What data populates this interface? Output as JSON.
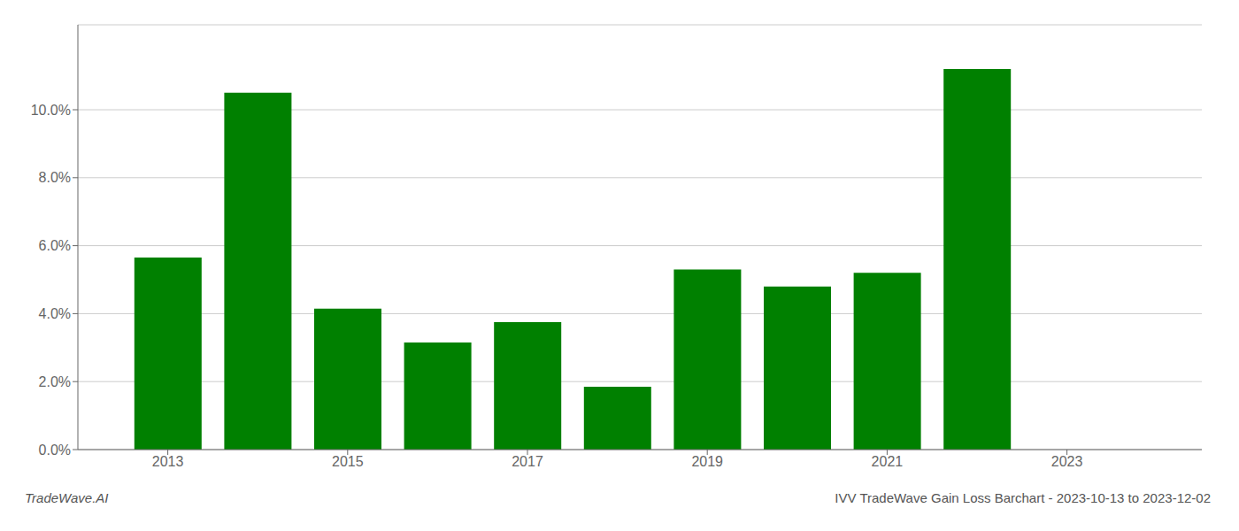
{
  "chart_data": {
    "type": "bar",
    "title": "IVV TradeWave Gain Loss Barchart - 2023-10-13 to 2023-12-02",
    "annotations": [
      "TradeWave.AI"
    ],
    "x": [
      2013,
      2014,
      2015,
      2016,
      2017,
      2018,
      2019,
      2020,
      2021,
      2022
    ],
    "values": [
      0.0565,
      0.105,
      0.0415,
      0.0315,
      0.0375,
      0.0185,
      0.053,
      0.048,
      0.052,
      0.112
    ],
    "color": "#008000",
    "xlim": [
      2012.0,
      2024.5
    ],
    "xticks": [
      2013,
      2015,
      2017,
      2019,
      2021,
      2023
    ],
    "ylim": [
      0,
      0.125
    ],
    "yticks": [
      {
        "value": 0.0,
        "label": "0.0%"
      },
      {
        "value": 0.02,
        "label": "2.0%"
      },
      {
        "value": 0.04,
        "label": "4.0%"
      },
      {
        "value": 0.06,
        "label": "6.0%"
      },
      {
        "value": 0.08,
        "label": "8.0%"
      },
      {
        "value": 0.1,
        "label": "10.0%"
      }
    ],
    "grid": "y"
  }
}
